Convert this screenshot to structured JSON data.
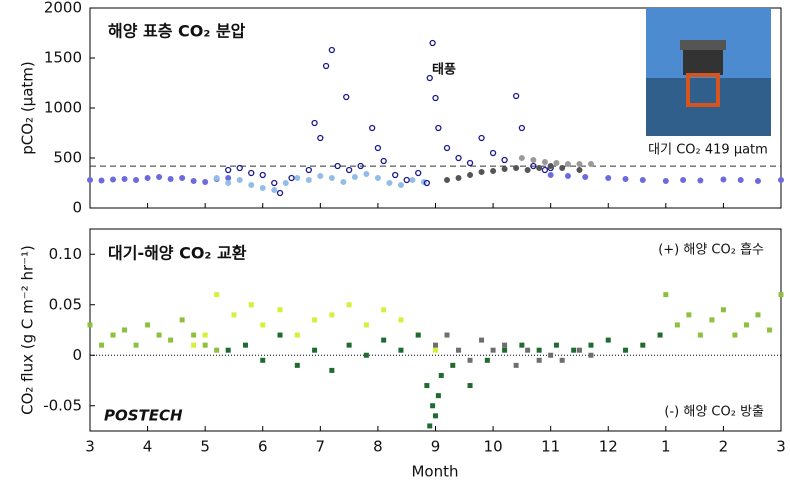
{
  "chart_data": [
    {
      "type": "scatter",
      "title": "해양 표층 CO₂ 분압",
      "ylabel": "pCO₂ (μatm)",
      "annotation": "태풍",
      "reference_line": {
        "value": 419,
        "label": "대기 CO₂ 419 μatm"
      },
      "xlim": [
        3,
        15
      ],
      "xticks": [
        3,
        4,
        5,
        6,
        7,
        8,
        9,
        10,
        11,
        12,
        {
          "value": 13,
          "label": "1"
        },
        {
          "value": 14,
          "label": "2"
        },
        {
          "value": 15,
          "label": "3"
        }
      ],
      "ylim": [
        0,
        2000
      ],
      "yticks": [
        0,
        500,
        1000,
        1500,
        2000
      ],
      "marker": "circle",
      "series": [
        {
          "color": "#6b6bdf",
          "filled": true,
          "x": [
            3,
            3.2,
            3.4,
            3.6,
            3.8,
            4,
            4.2,
            4.4,
            4.6,
            4.8,
            5,
            5.2,
            5.4,
            11,
            11.3,
            11.6,
            12,
            12.3,
            12.6,
            13,
            13.3,
            13.6,
            14,
            14.3,
            14.6,
            15
          ],
          "values": [
            280,
            275,
            285,
            290,
            280,
            300,
            310,
            290,
            300,
            270,
            260,
            290,
            300,
            330,
            320,
            310,
            300,
            290,
            280,
            270,
            280,
            275,
            285,
            280,
            270,
            280
          ]
        },
        {
          "color": "#93bde8",
          "filled": true,
          "x": [
            5.2,
            5.4,
            5.6,
            5.8,
            6,
            6.2,
            6.4,
            6.6,
            6.8,
            7,
            7.2,
            7.4,
            7.6,
            7.8,
            8,
            8.2,
            8.4,
            8.6,
            8.8
          ],
          "values": [
            300,
            250,
            280,
            230,
            200,
            180,
            250,
            300,
            280,
            320,
            300,
            260,
            310,
            340,
            300,
            250,
            230,
            280,
            260
          ]
        },
        {
          "color": "#1a1a8c",
          "filled": false,
          "x": [
            5.4,
            5.6,
            5.8,
            6,
            6.2,
            6.3,
            6.5,
            6.8,
            6.9,
            7,
            7.1,
            7.2,
            7.3,
            7.45,
            7.5,
            7.7,
            7.9,
            8,
            8.1,
            8.3,
            8.5,
            8.7,
            8.85,
            8.9,
            8.95,
            9,
            9.05,
            9.2,
            9.4,
            9.6,
            9.8,
            10,
            10.2,
            10.4,
            10.5,
            10.7,
            10.9,
            11
          ],
          "values": [
            380,
            400,
            350,
            330,
            250,
            150,
            300,
            380,
            850,
            700,
            1420,
            1580,
            420,
            1110,
            380,
            420,
            800,
            600,
            470,
            330,
            280,
            350,
            250,
            1300,
            1650,
            1100,
            800,
            600,
            500,
            450,
            700,
            550,
            480,
            1120,
            800,
            420,
            380,
            400
          ]
        },
        {
          "color": "#555555",
          "filled": true,
          "x": [
            9.2,
            9.4,
            9.6,
            9.8,
            10,
            10.2,
            10.4,
            10.6,
            10.8,
            11,
            11.2,
            11.5
          ],
          "values": [
            280,
            300,
            330,
            360,
            370,
            390,
            400,
            380,
            400,
            420,
            400,
            380
          ]
        },
        {
          "color": "#9a9a9a",
          "filled": true,
          "x": [
            10.5,
            10.7,
            10.9,
            11.1,
            11.3,
            11.5,
            11.7
          ],
          "values": [
            500,
            480,
            460,
            450,
            440,
            440,
            440
          ]
        }
      ]
    },
    {
      "type": "scatter",
      "title": "대기-해양 CO₂ 교환",
      "ylabel": "CO₂ flux (g C m⁻² hr⁻¹)",
      "xlabel": "Month",
      "note_top": "(+) 해양 CO₂ 흡수",
      "note_bottom": "(-) 해양 CO₂ 방출",
      "logo": "POSTECH",
      "xlim": [
        3,
        15
      ],
      "xticks": [
        3,
        4,
        5,
        6,
        7,
        8,
        9,
        10,
        11,
        12,
        {
          "value": 13,
          "label": "1"
        },
        {
          "value": 14,
          "label": "2"
        },
        {
          "value": 15,
          "label": "3"
        }
      ],
      "ylim": [
        -0.075,
        0.125
      ],
      "yticks": [
        -0.05,
        0,
        0.05,
        {
          "value": 0.1,
          "label": "0.10"
        }
      ],
      "marker": "square",
      "series": [
        {
          "color": "#8dc03c",
          "filled": true,
          "x": [
            3,
            3.2,
            3.4,
            3.6,
            3.8,
            4,
            4.2,
            4.4,
            4.6,
            4.8,
            5,
            5.2,
            13,
            13.2,
            13.4,
            13.6,
            13.8,
            14,
            14.2,
            14.4,
            14.6,
            14.8,
            15
          ],
          "values": [
            0.03,
            0.01,
            0.02,
            0.025,
            0.01,
            0.03,
            0.02,
            0.015,
            0.035,
            0.02,
            0.01,
            0.005,
            0.06,
            0.03,
            0.04,
            0.02,
            0.035,
            0.045,
            0.02,
            0.03,
            0.04,
            0.025,
            0.06
          ]
        },
        {
          "color": "#d6f03a",
          "filled": true,
          "x": [
            4.8,
            5,
            5.2,
            5.5,
            5.8,
            6,
            6.3,
            6.6,
            6.9,
            7.2,
            7.5,
            7.8,
            8.1,
            8.4,
            8.7,
            9
          ],
          "values": [
            0.01,
            0.02,
            0.06,
            0.04,
            0.05,
            0.03,
            0.045,
            0.02,
            0.035,
            0.04,
            0.05,
            0.03,
            0.045,
            0.035,
            0.02,
            0.005
          ]
        },
        {
          "color": "#1f6b30",
          "filled": true,
          "x": [
            5.4,
            5.7,
            6,
            6.3,
            6.6,
            6.9,
            7.2,
            7.5,
            7.8,
            8.1,
            8.4,
            8.7,
            8.85,
            8.9,
            8.95,
            9,
            9.05,
            9.1,
            9.3,
            9.6,
            9.9,
            10.2,
            10.5,
            10.8,
            11.1,
            11.4,
            11.7,
            12,
            12.3,
            12.6,
            12.9
          ],
          "values": [
            0.005,
            0.01,
            -0.005,
            0.02,
            -0.01,
            0.005,
            -0.015,
            0.01,
            0,
            0.015,
            0.005,
            0.02,
            -0.03,
            -0.07,
            -0.05,
            -0.06,
            -0.04,
            -0.02,
            -0.01,
            -0.03,
            -0.005,
            0.005,
            0.01,
            0.005,
            0.01,
            0.005,
            0.01,
            0.015,
            0.005,
            0.01,
            0.02
          ]
        },
        {
          "color": "#6e6e6e",
          "filled": true,
          "x": [
            9,
            9.2,
            9.4,
            9.6,
            9.8,
            10,
            10.2,
            10.4,
            10.6,
            10.8,
            11,
            11.2,
            11.5,
            11.7
          ],
          "values": [
            0.01,
            0.02,
            0.005,
            -0.005,
            0.015,
            0.005,
            0.01,
            -0.01,
            0.005,
            -0.005,
            0.0,
            -0.005,
            0.005,
            0.0
          ]
        }
      ]
    }
  ]
}
